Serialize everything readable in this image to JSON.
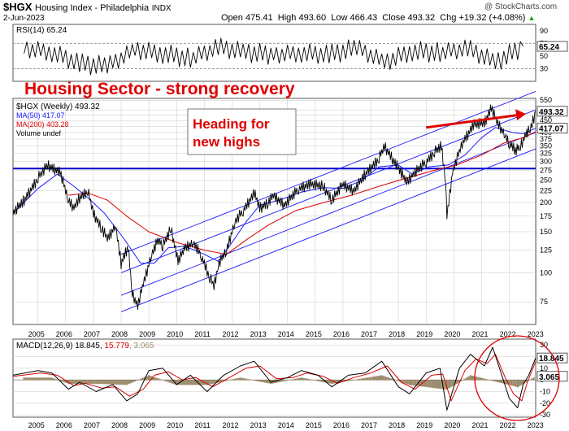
{
  "header": {
    "symbol": "$HGX",
    "name": "Housing Index - Philadelphia",
    "exchange": "INDX",
    "date": "2-Jun-2023",
    "watermark": "@ StockCharts.com",
    "ohlc": {
      "open_label": "Open",
      "open": "475.41",
      "high_label": "High",
      "high": "493.60",
      "low_label": "Low",
      "low": "466.43",
      "close_label": "Close",
      "close": "493.32",
      "chg_label": "Chg",
      "chg": "+19.32 (+4.08%)",
      "chg_arrow": "▲"
    }
  },
  "annotations": {
    "headline": "Housing Sector  -  strong recovery",
    "callout": [
      "Heading for",
      "new highs"
    ]
  },
  "colors": {
    "price": "#000000",
    "ma50": "#1a1aff",
    "ma200": "#dd0000",
    "channel": "#1a1aff",
    "support": "#0000cc",
    "annotation": "#e00000",
    "macd_hist": "#9b8a6a",
    "grid": "#c9c9c9"
  },
  "chart_data": [
    {
      "type": "line",
      "panel": "rsi",
      "legend": "RSI(14) 65.24",
      "last_value": "65.24",
      "ylim": [
        10,
        100
      ],
      "y_ticks": [
        30,
        50,
        70,
        90
      ],
      "reference_lines": [
        30,
        70
      ],
      "x": [
        "2005",
        "2006",
        "2007",
        "2008",
        "2009",
        "2010",
        "2011",
        "2012",
        "2013",
        "2014",
        "2015",
        "2016",
        "2017",
        "2018",
        "2019",
        "2020",
        "2021",
        "2022",
        "2023"
      ],
      "values": [
        62,
        56,
        38,
        34,
        60,
        54,
        46,
        64,
        56,
        52,
        55,
        52,
        63,
        40,
        58,
        55,
        62,
        40,
        65.24
      ]
    },
    {
      "type": "line",
      "panel": "price",
      "scale": "log",
      "ylim": [
        60,
        560
      ],
      "y_ticks": [
        75,
        100,
        125,
        150,
        175,
        200,
        225,
        250,
        275,
        300,
        325,
        350,
        375,
        400,
        425,
        450,
        475,
        500,
        550
      ],
      "x_ticks": [
        "2005",
        "2006",
        "2007",
        "2008",
        "2009",
        "2010",
        "2011",
        "2012",
        "2013",
        "2014",
        "2015",
        "2016",
        "2017",
        "2018",
        "2019",
        "2020",
        "2021",
        "2022",
        "2023"
      ],
      "x_start": 2004.6,
      "x_end": 2023.45,
      "legend": [
        "$HGX (Weekly) 493.32",
        "MA(50) 417.07",
        "MA(200) 403.28",
        "Volume undef"
      ],
      "last_labels": [
        "493.32",
        "417.07"
      ],
      "horizontal_line": 280,
      "series": [
        {
          "name": "$HGX (Weekly) 493.32",
          "points": [
            [
              2004.6,
              180
            ],
            [
              2005.0,
              205
            ],
            [
              2005.5,
              255
            ],
            [
              2005.85,
              290
            ],
            [
              2006.3,
              270
            ],
            [
              2006.6,
              205
            ],
            [
              2006.8,
              190
            ],
            [
              2007.0,
              210
            ],
            [
              2007.3,
              225
            ],
            [
              2007.5,
              180
            ],
            [
              2007.8,
              155
            ],
            [
              2008.0,
              140
            ],
            [
              2008.3,
              160
            ],
            [
              2008.5,
              110
            ],
            [
              2008.75,
              130
            ],
            [
              2008.9,
              82
            ],
            [
              2009.1,
              72
            ],
            [
              2009.3,
              90
            ],
            [
              2009.6,
              120
            ],
            [
              2009.85,
              140
            ],
            [
              2010.0,
              130
            ],
            [
              2010.3,
              155
            ],
            [
              2010.55,
              112
            ],
            [
              2010.8,
              128
            ],
            [
              2011.1,
              135
            ],
            [
              2011.4,
              118
            ],
            [
              2011.7,
              95
            ],
            [
              2011.85,
              88
            ],
            [
              2012.0,
              108
            ],
            [
              2012.3,
              125
            ],
            [
              2012.6,
              165
            ],
            [
              2012.9,
              185
            ],
            [
              2013.3,
              220
            ],
            [
              2013.5,
              190
            ],
            [
              2013.8,
              200
            ],
            [
              2014.0,
              215
            ],
            [
              2014.4,
              195
            ],
            [
              2014.9,
              230
            ],
            [
              2015.3,
              240
            ],
            [
              2015.8,
              235
            ],
            [
              2016.1,
              205
            ],
            [
              2016.5,
              240
            ],
            [
              2016.9,
              225
            ],
            [
              2017.3,
              265
            ],
            [
              2017.8,
              310
            ],
            [
              2018.0,
              350
            ],
            [
              2018.35,
              300
            ],
            [
              2018.8,
              245
            ],
            [
              2019.0,
              262
            ],
            [
              2019.5,
              300
            ],
            [
              2019.8,
              330
            ],
            [
              2020.05,
              350
            ],
            [
              2020.2,
              250
            ],
            [
              2020.25,
              175
            ],
            [
              2020.45,
              270
            ],
            [
              2020.8,
              360
            ],
            [
              2021.2,
              430
            ],
            [
              2021.6,
              440
            ],
            [
              2021.85,
              510
            ],
            [
              2022.05,
              445
            ],
            [
              2022.35,
              390
            ],
            [
              2022.5,
              360
            ],
            [
              2022.75,
              335
            ],
            [
              2022.9,
              350
            ],
            [
              2023.1,
              395
            ],
            [
              2023.25,
              410
            ],
            [
              2023.45,
              493.32
            ]
          ]
        },
        {
          "name": "MA(50) 417.07",
          "points": [
            [
              2004.6,
              180
            ],
            [
              2005.5,
              230
            ],
            [
              2006.2,
              265
            ],
            [
              2006.8,
              235
            ],
            [
              2007.3,
              210
            ],
            [
              2007.9,
              180
            ],
            [
              2008.6,
              140
            ],
            [
              2009.2,
              110
            ],
            [
              2009.7,
              110
            ],
            [
              2010.2,
              128
            ],
            [
              2010.8,
              130
            ],
            [
              2011.5,
              120
            ],
            [
              2012.0,
              112
            ],
            [
              2012.5,
              135
            ],
            [
              2013.0,
              165
            ],
            [
              2013.5,
              195
            ],
            [
              2014.2,
              205
            ],
            [
              2015.0,
              222
            ],
            [
              2015.8,
              232
            ],
            [
              2016.5,
              230
            ],
            [
              2017.2,
              250
            ],
            [
              2017.8,
              285
            ],
            [
              2018.5,
              290
            ],
            [
              2019.0,
              265
            ],
            [
              2019.6,
              285
            ],
            [
              2020.3,
              290
            ],
            [
              2020.9,
              320
            ],
            [
              2021.5,
              380
            ],
            [
              2022.0,
              420
            ],
            [
              2022.6,
              400
            ],
            [
              2023.0,
              395
            ],
            [
              2023.45,
              417.07
            ]
          ]
        },
        {
          "name": "MA(200) 403.28",
          "points": [
            [
              2006.6,
              215
            ],
            [
              2007.3,
              220
            ],
            [
              2008.0,
              205
            ],
            [
              2008.7,
              175
            ],
            [
              2009.5,
              150
            ],
            [
              2010.5,
              135
            ],
            [
              2011.5,
              125
            ],
            [
              2012.3,
              120
            ],
            [
              2013.0,
              138
            ],
            [
              2013.8,
              160
            ],
            [
              2014.8,
              185
            ],
            [
              2015.8,
              200
            ],
            [
              2016.8,
              215
            ],
            [
              2017.8,
              235
            ],
            [
              2018.8,
              255
            ],
            [
              2019.8,
              275
            ],
            [
              2020.6,
              290
            ],
            [
              2021.5,
              320
            ],
            [
              2022.3,
              360
            ],
            [
              2023.0,
              380
            ],
            [
              2023.45,
              403.28
            ]
          ]
        }
      ],
      "channel_lines": [
        [
          [
            2008.5,
            120
          ],
          [
            2023.45,
            600
          ]
        ],
        [
          [
            2008.5,
            100
          ],
          [
            2023.45,
            500
          ]
        ],
        [
          [
            2008.5,
            80
          ],
          [
            2023.45,
            400
          ]
        ],
        [
          [
            2008.5,
            68
          ],
          [
            2023.45,
            340
          ]
        ]
      ],
      "arrow": {
        "from": [
          2019.5,
          420
        ],
        "to": [
          2023.1,
          480
        ]
      }
    },
    {
      "type": "line",
      "panel": "macd",
      "legend_parts": [
        "MACD(12,26,9) 18.845, ",
        "15.779",
        ", 3.065"
      ],
      "last_labels": [
        "18.845",
        "3.065"
      ],
      "ylim": [
        -32,
        35
      ],
      "y_ticks": [
        -30,
        -20,
        -10,
        0,
        10,
        20,
        30
      ],
      "x_ticks": [
        "2005",
        "2006",
        "2007",
        "2008",
        "2009",
        "2010",
        "2011",
        "2012",
        "2013",
        "2014",
        "2015",
        "2016",
        "2017",
        "2018",
        "2019",
        "2020",
        "2021",
        "2022",
        "2023"
      ],
      "series": [
        {
          "name": "MACD",
          "points": [
            [
              2004.6,
              4
            ],
            [
              2005.5,
              8
            ],
            [
              2006.0,
              6
            ],
            [
              2006.6,
              -8
            ],
            [
              2007.0,
              -2
            ],
            [
              2007.6,
              -10
            ],
            [
              2008.2,
              -4
            ],
            [
              2008.7,
              -18
            ],
            [
              2009.1,
              -12
            ],
            [
              2009.5,
              8
            ],
            [
              2010.0,
              10
            ],
            [
              2010.5,
              -4
            ],
            [
              2011.0,
              4
            ],
            [
              2011.6,
              -10
            ],
            [
              2012.2,
              4
            ],
            [
              2012.8,
              12
            ],
            [
              2013.3,
              16
            ],
            [
              2013.9,
              -2
            ],
            [
              2014.5,
              2
            ],
            [
              2015.0,
              8
            ],
            [
              2015.6,
              4
            ],
            [
              2016.1,
              -6
            ],
            [
              2016.7,
              4
            ],
            [
              2017.3,
              6
            ],
            [
              2017.9,
              16
            ],
            [
              2018.5,
              -6
            ],
            [
              2018.9,
              -12
            ],
            [
              2019.5,
              6
            ],
            [
              2020.0,
              10
            ],
            [
              2020.25,
              -26
            ],
            [
              2020.7,
              10
            ],
            [
              2021.1,
              22
            ],
            [
              2021.6,
              12
            ],
            [
              2021.9,
              28
            ],
            [
              2022.2,
              6
            ],
            [
              2022.5,
              -16
            ],
            [
              2022.8,
              -24
            ],
            [
              2023.0,
              -4
            ],
            [
              2023.2,
              4
            ],
            [
              2023.45,
              18.845
            ]
          ]
        },
        {
          "name": "15.779",
          "points": [
            [
              2004.6,
              3
            ],
            [
              2005.6,
              6
            ],
            [
              2006.2,
              4
            ],
            [
              2006.8,
              -5
            ],
            [
              2007.2,
              -3
            ],
            [
              2007.8,
              -7
            ],
            [
              2008.3,
              -6
            ],
            [
              2008.8,
              -14
            ],
            [
              2009.3,
              -8
            ],
            [
              2009.7,
              4
            ],
            [
              2010.2,
              7
            ],
            [
              2010.7,
              0
            ],
            [
              2011.2,
              2
            ],
            [
              2011.8,
              -6
            ],
            [
              2012.4,
              2
            ],
            [
              2013.0,
              10
            ],
            [
              2013.5,
              12
            ],
            [
              2014.1,
              1
            ],
            [
              2014.7,
              2
            ],
            [
              2015.2,
              6
            ],
            [
              2015.8,
              3
            ],
            [
              2016.3,
              -3
            ],
            [
              2016.9,
              2
            ],
            [
              2017.5,
              6
            ],
            [
              2018.1,
              12
            ],
            [
              2018.6,
              -2
            ],
            [
              2019.1,
              -8
            ],
            [
              2019.7,
              4
            ],
            [
              2020.1,
              5
            ],
            [
              2020.4,
              -18
            ],
            [
              2020.9,
              8
            ],
            [
              2021.3,
              18
            ],
            [
              2021.7,
              14
            ],
            [
              2022.0,
              22
            ],
            [
              2022.35,
              2
            ],
            [
              2022.65,
              -12
            ],
            [
              2022.95,
              -18
            ],
            [
              2023.15,
              -2
            ],
            [
              2023.45,
              15.779
            ]
          ]
        }
      ],
      "histogram": {
        "name": "3.065",
        "points": [
          [
            2005.0,
            2
          ],
          [
            2006.0,
            2
          ],
          [
            2006.6,
            -3
          ],
          [
            2007.6,
            -3
          ],
          [
            2008.7,
            -4
          ],
          [
            2009.5,
            4
          ],
          [
            2010.5,
            -4
          ],
          [
            2011.6,
            -4
          ],
          [
            2012.8,
            2
          ],
          [
            2013.9,
            -3
          ],
          [
            2015.0,
            2
          ],
          [
            2016.1,
            -3
          ],
          [
            2017.9,
            4
          ],
          [
            2018.9,
            -4
          ],
          [
            2020.25,
            -8
          ],
          [
            2021.1,
            4
          ],
          [
            2022.5,
            -4
          ],
          [
            2022.8,
            -6
          ],
          [
            2023.45,
            3.065
          ]
        ]
      }
    }
  ]
}
